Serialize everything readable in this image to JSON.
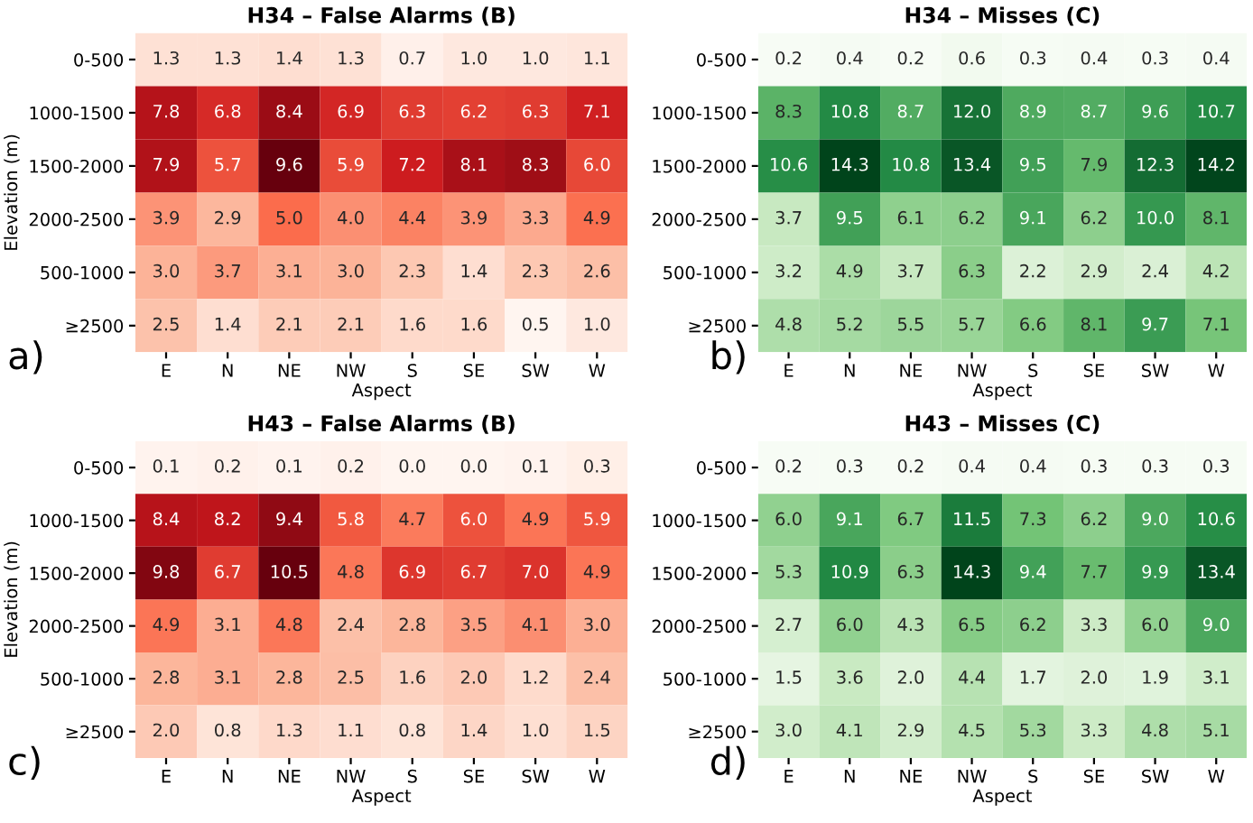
{
  "chart_data": [
    {
      "type": "heatmap",
      "title": "H34 – False Alarms (B)",
      "xlabel": "Aspect",
      "ylabel": "Elevation (m)",
      "annotations": [
        "a)"
      ],
      "data_labels": true,
      "grid": false,
      "colors": [
        "#fff5f0",
        "#fcbba1",
        "#fb6a4a",
        "#cb181d",
        "#67000d"
      ],
      "categories": [
        "E",
        "N",
        "NE",
        "NW",
        "S",
        "SE",
        "SW",
        "W"
      ],
      "y_categories": [
        "0-500",
        "1000-1500",
        "1500-2000",
        "2000-2500",
        "500-1000",
        "≥2500"
      ],
      "cells": [
        [
          1.3,
          1.3,
          1.4,
          1.3,
          0.7,
          1.0,
          1.0,
          1.1
        ],
        [
          7.8,
          6.8,
          8.4,
          6.9,
          6.3,
          6.2,
          6.3,
          7.1
        ],
        [
          7.9,
          5.7,
          9.6,
          5.9,
          7.2,
          8.1,
          8.3,
          6.0
        ],
        [
          3.9,
          2.9,
          5.0,
          4.0,
          4.4,
          3.9,
          3.3,
          4.9
        ],
        [
          3.0,
          3.7,
          3.1,
          3.0,
          2.3,
          1.4,
          2.3,
          2.6
        ],
        [
          2.5,
          1.4,
          2.1,
          2.1,
          1.6,
          1.6,
          0.5,
          1.0
        ]
      ],
      "cell_labels": [
        [
          "1.3",
          "1.3",
          "1.4",
          "1.3",
          "0.7",
          "1.0",
          "1.0",
          "1.1"
        ],
        [
          "7.8",
          "6.8",
          "8.4",
          "6.9",
          "6.3",
          "6.2",
          "6.3",
          "7.1"
        ],
        [
          "7.9",
          "5.7",
          "9.6",
          "5.9",
          "7.2",
          "8.1",
          "8.3",
          "6.0"
        ],
        [
          "3.9",
          "2.9",
          "5.0",
          "4.0",
          "4.4",
          "3.9",
          "3.3",
          "4.9"
        ],
        [
          "3.0",
          "3.7",
          "3.1",
          "3.0",
          "2.3",
          "1.4",
          "2.3",
          "2.6"
        ],
        [
          "2.5",
          "1.4",
          "2.1",
          "2.1",
          "1.6",
          "1.6",
          "0.5",
          "1.0"
        ]
      ]
    },
    {
      "type": "heatmap",
      "title": "H34 – Misses (C)",
      "xlabel": "Aspect",
      "annotations": [
        "b)"
      ],
      "data_labels": true,
      "grid": false,
      "colors": [
        "#f7fcf5",
        "#c7e9c0",
        "#74c476",
        "#238b45",
        "#00441b"
      ],
      "categories": [
        "E",
        "N",
        "NE",
        "NW",
        "S",
        "SE",
        "SW",
        "W"
      ],
      "y_categories": [
        "0-500",
        "1000-1500",
        "1500-2000",
        "2000-2500",
        "500-1000",
        "≥2500"
      ],
      "cells": [
        [
          0.2,
          0.4,
          0.2,
          0.6,
          0.3,
          0.4,
          0.3,
          0.4
        ],
        [
          8.3,
          10.8,
          8.7,
          12.0,
          8.9,
          8.7,
          9.6,
          10.7
        ],
        [
          10.6,
          14.3,
          10.8,
          13.4,
          9.5,
          7.9,
          12.3,
          14.2
        ],
        [
          3.7,
          9.5,
          6.1,
          6.2,
          9.1,
          6.2,
          10.0,
          8.1
        ],
        [
          3.2,
          4.9,
          3.7,
          6.3,
          2.2,
          2.9,
          2.4,
          4.2
        ],
        [
          4.8,
          5.2,
          5.5,
          5.7,
          6.6,
          8.1,
          9.7,
          7.1
        ]
      ],
      "cell_labels": [
        [
          "0.2",
          "0.4",
          "0.2",
          "0.6",
          "0.3",
          "0.4",
          "0.3",
          "0.4"
        ],
        [
          "8.3",
          "10.8",
          "8.7",
          "12.0",
          "8.9",
          "8.7",
          "9.6",
          "10.7"
        ],
        [
          "10.6",
          "14.3",
          "10.8",
          "13.4",
          "9.5",
          "7.9",
          "12.3",
          "14.2"
        ],
        [
          "3.7",
          "9.5",
          "6.1",
          "6.2",
          "9.1",
          "6.2",
          "10.0",
          "8.1"
        ],
        [
          "3.2",
          "4.9",
          "3.7",
          "6.3",
          "2.2",
          "2.9",
          "2.4",
          "4.2"
        ],
        [
          "4.8",
          "5.2",
          "5.5",
          "5.7",
          "6.6",
          "8.1",
          "9.7",
          "7.1"
        ]
      ]
    },
    {
      "type": "heatmap",
      "title": "H43 – False Alarms (B)",
      "xlabel": "Aspect",
      "ylabel": "Elevation (m)",
      "annotations": [
        "c)"
      ],
      "data_labels": true,
      "grid": false,
      "colors": [
        "#fff5f0",
        "#fcbba1",
        "#fb6a4a",
        "#cb181d",
        "#67000d"
      ],
      "categories": [
        "E",
        "N",
        "NE",
        "NW",
        "S",
        "SE",
        "SW",
        "W"
      ],
      "y_categories": [
        "0-500",
        "1000-1500",
        "1500-2000",
        "2000-2500",
        "500-1000",
        "≥2500"
      ],
      "cells": [
        [
          0.1,
          0.2,
          0.1,
          0.2,
          0.0,
          0.0,
          0.1,
          0.3
        ],
        [
          8.4,
          8.2,
          9.4,
          5.8,
          4.7,
          6.0,
          4.9,
          5.9
        ],
        [
          9.8,
          6.7,
          10.5,
          4.8,
          6.9,
          6.7,
          7.0,
          4.9
        ],
        [
          4.9,
          3.1,
          4.8,
          2.4,
          2.8,
          3.5,
          4.1,
          3.0
        ],
        [
          2.8,
          3.1,
          2.8,
          2.5,
          1.6,
          2.0,
          1.2,
          2.4
        ],
        [
          2.0,
          0.8,
          1.3,
          1.1,
          0.8,
          1.4,
          1.0,
          1.5
        ]
      ],
      "cell_labels": [
        [
          "0.1",
          "0.2",
          "0.1",
          "0.2",
          "0.0",
          "0.0",
          "0.1",
          "0.3"
        ],
        [
          "8.4",
          "8.2",
          "9.4",
          "5.8",
          "4.7",
          "6.0",
          "4.9",
          "5.9"
        ],
        [
          "9.8",
          "6.7",
          "10.5",
          "4.8",
          "6.9",
          "6.7",
          "7.0",
          "4.9"
        ],
        [
          "4.9",
          "3.1",
          "4.8",
          "2.4",
          "2.8",
          "3.5",
          "4.1",
          "3.0"
        ],
        [
          "2.8",
          "3.1",
          "2.8",
          "2.5",
          "1.6",
          "2.0",
          "1.2",
          "2.4"
        ],
        [
          "2.0",
          "0.8",
          "1.3",
          "1.1",
          "0.8",
          "1.4",
          "1.0",
          "1.5"
        ]
      ]
    },
    {
      "type": "heatmap",
      "title": "H43 – Misses (C)",
      "xlabel": "Aspect",
      "annotations": [
        "d)"
      ],
      "data_labels": true,
      "grid": false,
      "colors": [
        "#f7fcf5",
        "#c7e9c0",
        "#74c476",
        "#238b45",
        "#00441b"
      ],
      "categories": [
        "E",
        "N",
        "NE",
        "NW",
        "S",
        "SE",
        "SW",
        "W"
      ],
      "y_categories": [
        "0-500",
        "1000-1500",
        "1500-2000",
        "2000-2500",
        "500-1000",
        "≥2500"
      ],
      "cells": [
        [
          0.2,
          0.3,
          0.2,
          0.4,
          0.4,
          0.3,
          0.3,
          0.3
        ],
        [
          6.0,
          9.1,
          6.7,
          11.5,
          7.3,
          6.2,
          9.0,
          10.6
        ],
        [
          5.3,
          10.9,
          6.3,
          14.3,
          9.4,
          7.7,
          9.9,
          13.4
        ],
        [
          2.7,
          6.0,
          4.3,
          6.5,
          6.2,
          3.3,
          6.0,
          9.0
        ],
        [
          1.5,
          3.6,
          2.0,
          4.4,
          1.7,
          2.0,
          1.9,
          3.1
        ],
        [
          3.0,
          4.1,
          2.9,
          4.5,
          5.3,
          3.3,
          4.8,
          5.1
        ]
      ],
      "cell_labels": [
        [
          "0.2",
          "0.3",
          "0.2",
          "0.4",
          "0.4",
          "0.3",
          "0.3",
          "0.3"
        ],
        [
          "6.0",
          "9.1",
          "6.7",
          "11.5",
          "7.3",
          "6.2",
          "9.0",
          "10.6"
        ],
        [
          "5.3",
          "10.9",
          "6.3",
          "14.3",
          "9.4",
          "7.7",
          "9.9",
          "13.4"
        ],
        [
          "2.7",
          "6.0",
          "4.3",
          "6.5",
          "6.2",
          "3.3",
          "6.0",
          "9.0"
        ],
        [
          "1.5",
          "3.6",
          "2.0",
          "4.4",
          "1.7",
          "2.0",
          "1.9",
          "3.1"
        ],
        [
          "3.0",
          "4.1",
          "2.9",
          "4.5",
          "5.3",
          "3.3",
          "4.8",
          "5.1"
        ]
      ]
    }
  ]
}
